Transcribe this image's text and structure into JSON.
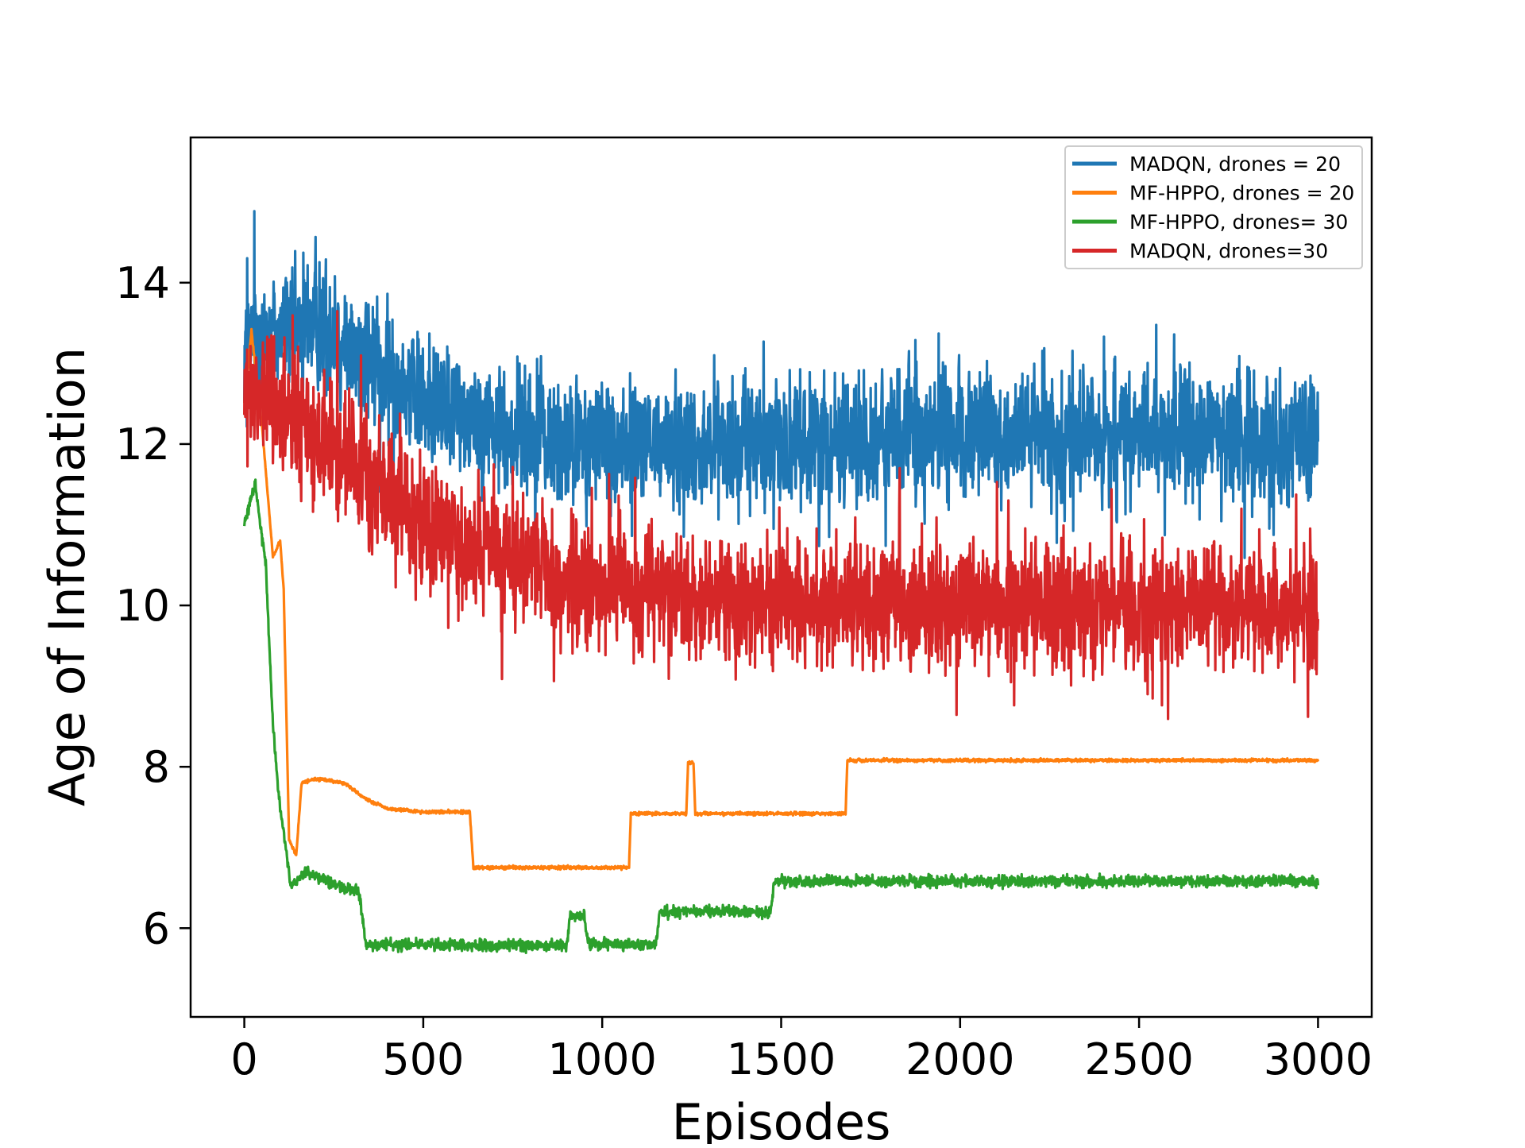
{
  "chart_data": {
    "type": "line",
    "title": "",
    "xlabel": "Episodes",
    "ylabel": "Age of Information",
    "xlim": [
      -150,
      3150
    ],
    "ylim": [
      4.9,
      15.8
    ],
    "xticks": [
      0,
      500,
      1000,
      1500,
      2000,
      2500,
      3000
    ],
    "xtick_labels": [
      "0",
      "500",
      "1000",
      "1500",
      "2000",
      "2500",
      "3000"
    ],
    "yticks": [
      6,
      8,
      10,
      12,
      14
    ],
    "ytick_labels": [
      "6",
      "8",
      "10",
      "12",
      "14"
    ],
    "grid": false,
    "legend_position": "top-right",
    "series": [
      {
        "name": "MADQN, drones = 20",
        "color": "#1f77b4",
        "noise": 0.75,
        "trend": [
          [
            0,
            13.2
          ],
          [
            50,
            13.4
          ],
          [
            200,
            13.5
          ],
          [
            350,
            13.0
          ],
          [
            500,
            12.6
          ],
          [
            700,
            12.2
          ],
          [
            900,
            12.0
          ],
          [
            1200,
            12.0
          ],
          [
            2000,
            12.1
          ],
          [
            3000,
            12.1
          ]
        ]
      },
      {
        "name": "MF-HPPO, drones = 20",
        "color": "#ff7f0e",
        "noise": 0.02,
        "trend": [
          [
            0,
            12.5
          ],
          [
            20,
            13.4
          ],
          [
            50,
            12.2
          ],
          [
            80,
            10.6
          ],
          [
            100,
            10.8
          ],
          [
            110,
            10.2
          ],
          [
            125,
            7.1
          ],
          [
            145,
            6.9
          ],
          [
            160,
            7.8
          ],
          [
            200,
            7.85
          ],
          [
            280,
            7.8
          ],
          [
            340,
            7.6
          ],
          [
            400,
            7.48
          ],
          [
            500,
            7.44
          ],
          [
            630,
            7.44
          ],
          [
            640,
            6.75
          ],
          [
            1075,
            6.75
          ],
          [
            1080,
            7.42
          ],
          [
            1235,
            7.42
          ],
          [
            1240,
            8.05
          ],
          [
            1255,
            8.05
          ],
          [
            1260,
            7.42
          ],
          [
            1680,
            7.42
          ],
          [
            1685,
            8.08
          ],
          [
            3000,
            8.08
          ]
        ]
      },
      {
        "name": "MF-HPPO, drones= 30",
        "color": "#2ca02c",
        "noise": 0.07,
        "trend": [
          [
            0,
            11.0
          ],
          [
            30,
            11.5
          ],
          [
            60,
            10.5
          ],
          [
            80,
            8.5
          ],
          [
            100,
            7.5
          ],
          [
            130,
            6.5
          ],
          [
            170,
            6.7
          ],
          [
            250,
            6.55
          ],
          [
            320,
            6.45
          ],
          [
            340,
            5.8
          ],
          [
            900,
            5.78
          ],
          [
            910,
            6.15
          ],
          [
            950,
            6.15
          ],
          [
            960,
            5.8
          ],
          [
            1150,
            5.8
          ],
          [
            1160,
            6.2
          ],
          [
            1470,
            6.2
          ],
          [
            1480,
            6.58
          ],
          [
            3000,
            6.58
          ]
        ]
      },
      {
        "name": "MADQN, drones=30",
        "color": "#d62728",
        "noise": 0.75,
        "trend": [
          [
            0,
            12.6
          ],
          [
            100,
            12.4
          ],
          [
            200,
            12.1
          ],
          [
            350,
            11.6
          ],
          [
            500,
            11.0
          ],
          [
            700,
            10.6
          ],
          [
            900,
            10.3
          ],
          [
            1200,
            10.1
          ],
          [
            2000,
            10.0
          ],
          [
            3000,
            9.95
          ]
        ]
      }
    ]
  }
}
